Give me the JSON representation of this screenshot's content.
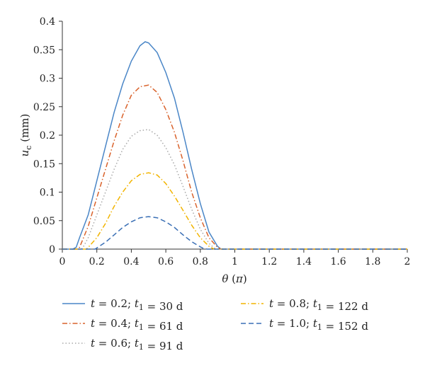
{
  "chart_data": {
    "type": "line",
    "xlabel": "θ (π)",
    "ylabel": "u_c (mm)",
    "xlim": [
      0,
      2
    ],
    "ylim": [
      0,
      0.4
    ],
    "xticks": [
      "0",
      "0.2",
      "0.4",
      "0.6",
      "0.8",
      "1",
      "1.2",
      "1.4",
      "1.6",
      "1.8",
      "2"
    ],
    "yticks": [
      "0",
      "0.05",
      "0.1",
      "0.15",
      "0.2",
      "0.25",
      "0.3",
      "0.35",
      "0.4"
    ],
    "grid": false,
    "legend_position": "bottom",
    "series": [
      {
        "name": "t = 0.2; t1 = 30 d",
        "t": "0.2",
        "t1": "30",
        "color": "#4a86c7",
        "dash": "solid",
        "x": [
          0,
          0.06,
          0.08,
          0.1,
          0.15,
          0.2,
          0.25,
          0.3,
          0.35,
          0.4,
          0.45,
          0.48,
          0.5,
          0.55,
          0.6,
          0.65,
          0.7,
          0.75,
          0.8,
          0.85,
          0.9,
          0.92,
          0.94,
          1,
          1.2,
          1.4,
          1.6,
          1.8,
          2
        ],
        "y": [
          0,
          0,
          0.003,
          0.02,
          0.06,
          0.12,
          0.18,
          0.24,
          0.29,
          0.33,
          0.357,
          0.364,
          0.362,
          0.345,
          0.31,
          0.265,
          0.205,
          0.14,
          0.08,
          0.03,
          0.005,
          0,
          0,
          0,
          0,
          0,
          0,
          0,
          0
        ]
      },
      {
        "name": "t = 0.4; t1 = 61 d",
        "t": "0.4",
        "t1": "61",
        "color": "#d9622b",
        "dash": "dashdot",
        "x": [
          0,
          0.09,
          0.1,
          0.15,
          0.2,
          0.25,
          0.3,
          0.35,
          0.4,
          0.45,
          0.5,
          0.55,
          0.6,
          0.65,
          0.7,
          0.75,
          0.8,
          0.85,
          0.9,
          0.92,
          1,
          1.2,
          1.4,
          1.6,
          1.8,
          2
        ],
        "y": [
          0,
          0,
          0.003,
          0.04,
          0.09,
          0.14,
          0.19,
          0.235,
          0.27,
          0.285,
          0.288,
          0.275,
          0.245,
          0.205,
          0.155,
          0.1,
          0.055,
          0.02,
          0.003,
          0,
          0,
          0,
          0,
          0,
          0,
          0
        ],
        "points": 26
      },
      {
        "name": "t = 0.6; t1 = 91 d",
        "t": "0.6",
        "t1": "91",
        "color": "#a8a8a8",
        "dash": "dotted",
        "x": [
          0,
          0.11,
          0.12,
          0.15,
          0.2,
          0.25,
          0.3,
          0.35,
          0.4,
          0.45,
          0.5,
          0.55,
          0.6,
          0.65,
          0.7,
          0.75,
          0.8,
          0.85,
          0.88,
          0.9,
          1,
          1.2,
          1.4,
          1.6,
          1.8,
          2
        ],
        "y": [
          0,
          0,
          0.003,
          0.02,
          0.06,
          0.1,
          0.14,
          0.175,
          0.198,
          0.208,
          0.21,
          0.2,
          0.178,
          0.148,
          0.11,
          0.07,
          0.035,
          0.01,
          0.002,
          0,
          0,
          0,
          0,
          0,
          0,
          0
        ]
      },
      {
        "name": "t = 0.8; t1 = 122 d",
        "t": "0.8",
        "t1": "122",
        "color": "#f2b400",
        "dash": "dashdot",
        "x": [
          0,
          0.14,
          0.15,
          0.2,
          0.25,
          0.3,
          0.35,
          0.4,
          0.45,
          0.5,
          0.55,
          0.6,
          0.65,
          0.7,
          0.75,
          0.8,
          0.85,
          0.88,
          0.9,
          1,
          1.2,
          1.4,
          1.6,
          1.8,
          2
        ],
        "y": [
          0,
          0,
          0.003,
          0.02,
          0.045,
          0.075,
          0.1,
          0.12,
          0.131,
          0.134,
          0.13,
          0.115,
          0.093,
          0.068,
          0.042,
          0.02,
          0.005,
          0,
          0,
          0,
          0,
          0,
          0,
          0,
          0
        ]
      },
      {
        "name": "t = 1.0; t1 = 152 d",
        "t": "1.0",
        "t1": "152",
        "color": "#3a6fb5",
        "dash": "dashed",
        "x": [
          0,
          0.19,
          0.2,
          0.25,
          0.3,
          0.35,
          0.4,
          0.45,
          0.5,
          0.55,
          0.6,
          0.65,
          0.7,
          0.75,
          0.8,
          0.82,
          0.84,
          0.9,
          1,
          1.2,
          1.4,
          1.6,
          1.8,
          2
        ],
        "y": [
          0,
          0,
          0.002,
          0.012,
          0.025,
          0.038,
          0.048,
          0.055,
          0.057,
          0.055,
          0.048,
          0.038,
          0.025,
          0.013,
          0.004,
          0.001,
          0,
          0,
          0,
          0,
          0,
          0,
          0,
          0
        ]
      }
    ]
  }
}
